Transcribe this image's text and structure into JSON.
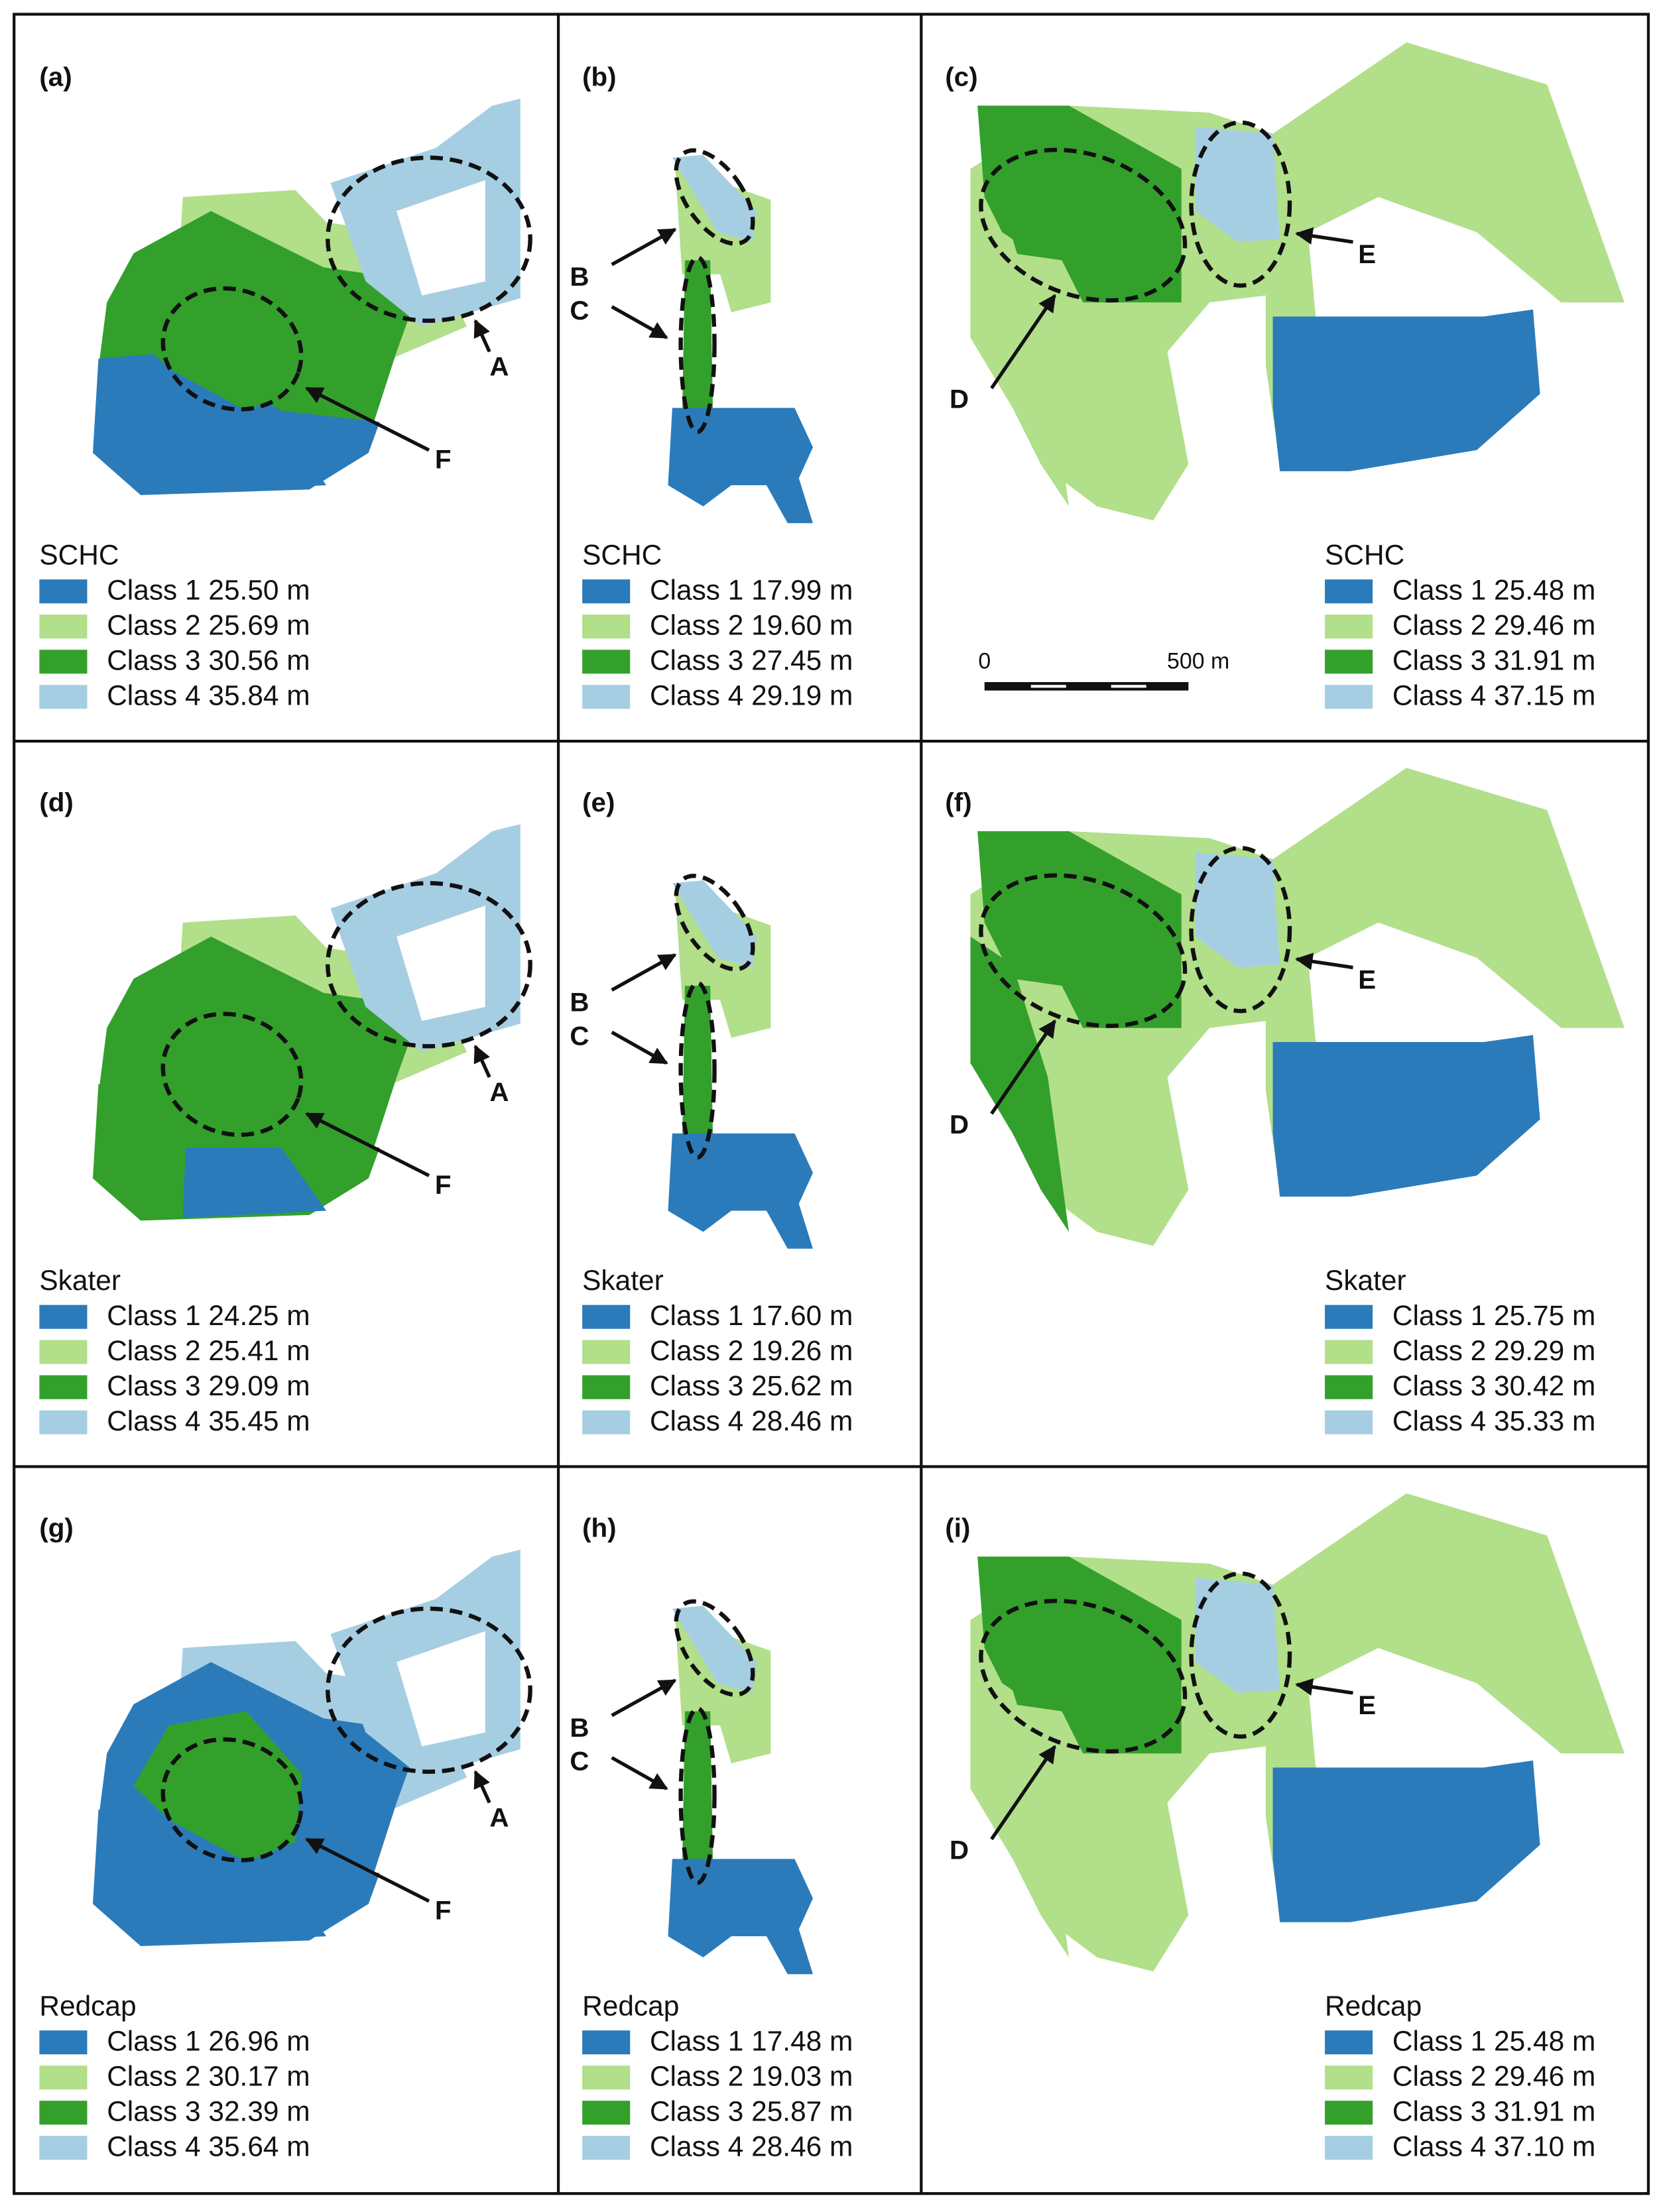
{
  "panels": [
    {
      "label": "(a)",
      "legend": {
        "title": "SCHC",
        "items": [
          "Class 1 25.50 m",
          "Class 2 25.69 m",
          "Class 3 30.56 m",
          "Class 4 35.84 m"
        ]
      },
      "annotations": [
        "A",
        "F"
      ]
    },
    {
      "label": "(b)",
      "legend": {
        "title": "SCHC",
        "items": [
          "Class 1 17.99 m",
          "Class 2 19.60 m",
          "Class 3 27.45 m",
          "Class 4 29.19 m"
        ]
      },
      "annotations": [
        "B",
        "C"
      ]
    },
    {
      "label": "(c)",
      "legend": {
        "title": "SCHC",
        "items": [
          "Class 1 25.48 m",
          "Class 2 29.46 m",
          "Class 3 31.91 m",
          "Class 4 37.15 m"
        ]
      },
      "annotations": [
        "D",
        "E"
      ]
    },
    {
      "label": "(d)",
      "legend": {
        "title": "Skater",
        "items": [
          "Class 1 24.25 m",
          "Class 2 25.41 m",
          "Class 3 29.09 m",
          "Class 4 35.45 m"
        ]
      },
      "annotations": [
        "A",
        "F"
      ]
    },
    {
      "label": "(e)",
      "legend": {
        "title": "Skater",
        "items": [
          "Class 1 17.60 m",
          "Class 2 19.26 m",
          "Class 3 25.62 m",
          "Class 4 28.46 m"
        ]
      },
      "annotations": [
        "B",
        "C"
      ]
    },
    {
      "label": "(f)",
      "legend": {
        "title": "Skater",
        "items": [
          "Class 1 25.75 m",
          "Class 2 29.29 m",
          "Class 3 30.42 m",
          "Class 4 35.33 m"
        ]
      },
      "annotations": [
        "D",
        "E"
      ]
    },
    {
      "label": "(g)",
      "legend": {
        "title": "Redcap",
        "items": [
          "Class 1 26.96 m",
          "Class 2 30.17 m",
          "Class 3 32.39 m",
          "Class 4 35.64 m"
        ]
      },
      "annotations": [
        "A",
        "F"
      ]
    },
    {
      "label": "(h)",
      "legend": {
        "title": "Redcap",
        "items": [
          "Class 1 17.48 m",
          "Class 2 19.03 m",
          "Class 3 25.87 m",
          "Class 4 28.46 m"
        ]
      },
      "annotations": [
        "B",
        "C"
      ]
    },
    {
      "label": "(i)",
      "legend": {
        "title": "Redcap",
        "items": [
          "Class 1 25.48 m",
          "Class 2 29.46 m",
          "Class 3 31.91 m",
          "Class 4 37.10 m"
        ]
      },
      "annotations": [
        "D",
        "E"
      ]
    }
  ],
  "class_colors": [
    "#2b7bba",
    "#b2df8a",
    "#33a02c",
    "#a6cee3"
  ],
  "scale_bar": {
    "start": "0",
    "end": "500 m"
  }
}
